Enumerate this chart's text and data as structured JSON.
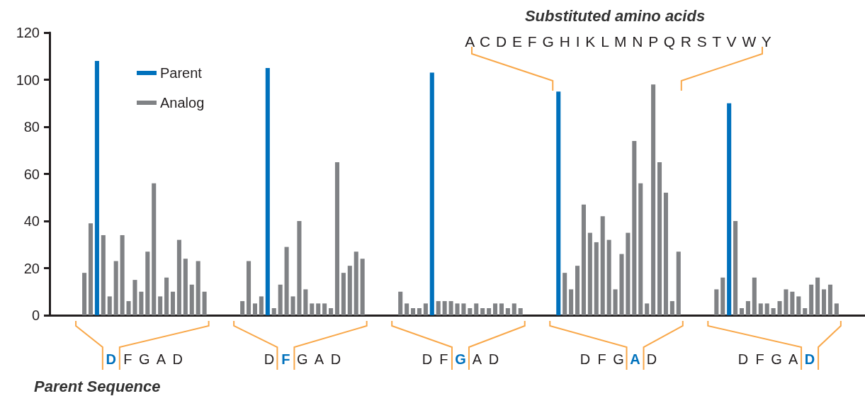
{
  "chart_data": {
    "type": "bar",
    "categories": [
      null,
      null,
      null,
      null,
      null,
      null,
      null,
      null,
      null,
      null,
      null,
      null,
      null,
      null,
      null,
      null,
      null,
      null,
      null,
      null,
      null,
      null,
      null,
      null,
      null,
      null,
      null,
      null,
      null,
      null,
      null,
      null,
      null,
      null,
      null,
      null,
      null,
      null,
      null,
      null,
      null,
      null,
      null,
      null,
      null,
      null,
      null,
      null,
      null,
      null,
      null,
      null,
      null,
      null,
      null,
      null,
      null,
      null,
      null,
      null,
      null,
      null,
      null,
      null,
      null,
      null,
      null,
      null,
      null,
      null,
      null,
      null,
      null,
      null,
      null,
      null,
      null,
      null,
      null,
      null,
      null,
      null,
      null,
      null,
      null,
      null,
      null,
      null,
      null,
      null,
      null,
      null,
      null,
      null,
      null,
      null,
      null,
      null,
      null,
      null,
      null,
      null,
      null,
      null,
      null,
      null,
      null,
      null,
      null,
      null,
      null,
      null,
      null,
      null,
      null,
      null,
      null,
      null,
      null,
      null,
      null,
      null,
      null,
      null,
      null,
      null,
      null,
      null,
      null
    ],
    "series": [
      {
        "name": "Parent",
        "color": "#0071bc",
        "values": [
          null,
          null,
          null,
          null,
          null,
          null,
          null,
          108,
          null,
          null,
          null,
          null,
          null,
          null,
          null,
          null,
          null,
          null,
          null,
          null,
          null,
          null,
          null,
          null,
          null,
          null,
          null,
          null,
          null,
          null,
          null,
          null,
          null,
          null,
          105,
          null,
          null,
          null,
          null,
          null,
          null,
          null,
          null,
          null,
          null,
          null,
          null,
          null,
          null,
          null,
          null,
          null,
          null,
          null,
          null,
          null,
          null,
          null,
          null,
          null,
          103,
          null,
          null,
          null,
          null,
          null,
          null,
          null,
          null,
          null,
          null,
          null,
          null,
          null,
          null,
          null,
          null,
          null,
          null,
          null,
          95,
          null,
          null,
          null,
          null,
          null,
          null,
          null,
          null,
          null,
          null,
          null,
          null,
          null,
          null,
          null,
          null,
          null,
          null,
          null,
          null,
          null,
          null,
          null,
          null,
          null,
          null,
          90,
          null,
          null,
          null,
          null,
          null,
          null,
          null,
          null,
          null,
          null,
          null,
          null,
          null,
          null,
          null,
          null,
          null,
          null,
          null,
          null,
          null
        ]
      },
      {
        "name": "Analog",
        "color": "#808285",
        "values": [
          null,
          null,
          null,
          null,
          null,
          18,
          39,
          null,
          34,
          8,
          23,
          34,
          6,
          15,
          10,
          27,
          56,
          8,
          16,
          10,
          32,
          24,
          13,
          23,
          10,
          null,
          null,
          null,
          null,
          null,
          6,
          23,
          5,
          8,
          null,
          3,
          13,
          29,
          8,
          40,
          11,
          5,
          5,
          5,
          3,
          65,
          18,
          21,
          27,
          24,
          null,
          null,
          null,
          null,
          null,
          10,
          5,
          3,
          3,
          5,
          null,
          6,
          6,
          6,
          5,
          5,
          3,
          5,
          3,
          3,
          5,
          5,
          3,
          5,
          3,
          null,
          null,
          null,
          null,
          null,
          null,
          18,
          11,
          21,
          47,
          35,
          31,
          42,
          32,
          11,
          26,
          35,
          74,
          56,
          5,
          98,
          65,
          52,
          6,
          27,
          null,
          null,
          null,
          null,
          null,
          11,
          16,
          null,
          40,
          3,
          6,
          16,
          5,
          5,
          3,
          6,
          11,
          10,
          8,
          3,
          13,
          16,
          11,
          13,
          5,
          null,
          null,
          null,
          null
        ]
      }
    ],
    "ylim": [
      0,
      120
    ],
    "yticks": [
      0,
      20,
      40,
      60,
      80,
      100,
      120
    ],
    "legend": "top left",
    "tick_labels": "y",
    "annotations": [
      "Substituted amino acids",
      "A C D E F G H I K L M N P Q R S T V W Y",
      "D F G A D",
      "D F G A D",
      "D F G A D",
      "D F G A D",
      "D F G A D",
      "Parent Sequence"
    ]
  }
}
